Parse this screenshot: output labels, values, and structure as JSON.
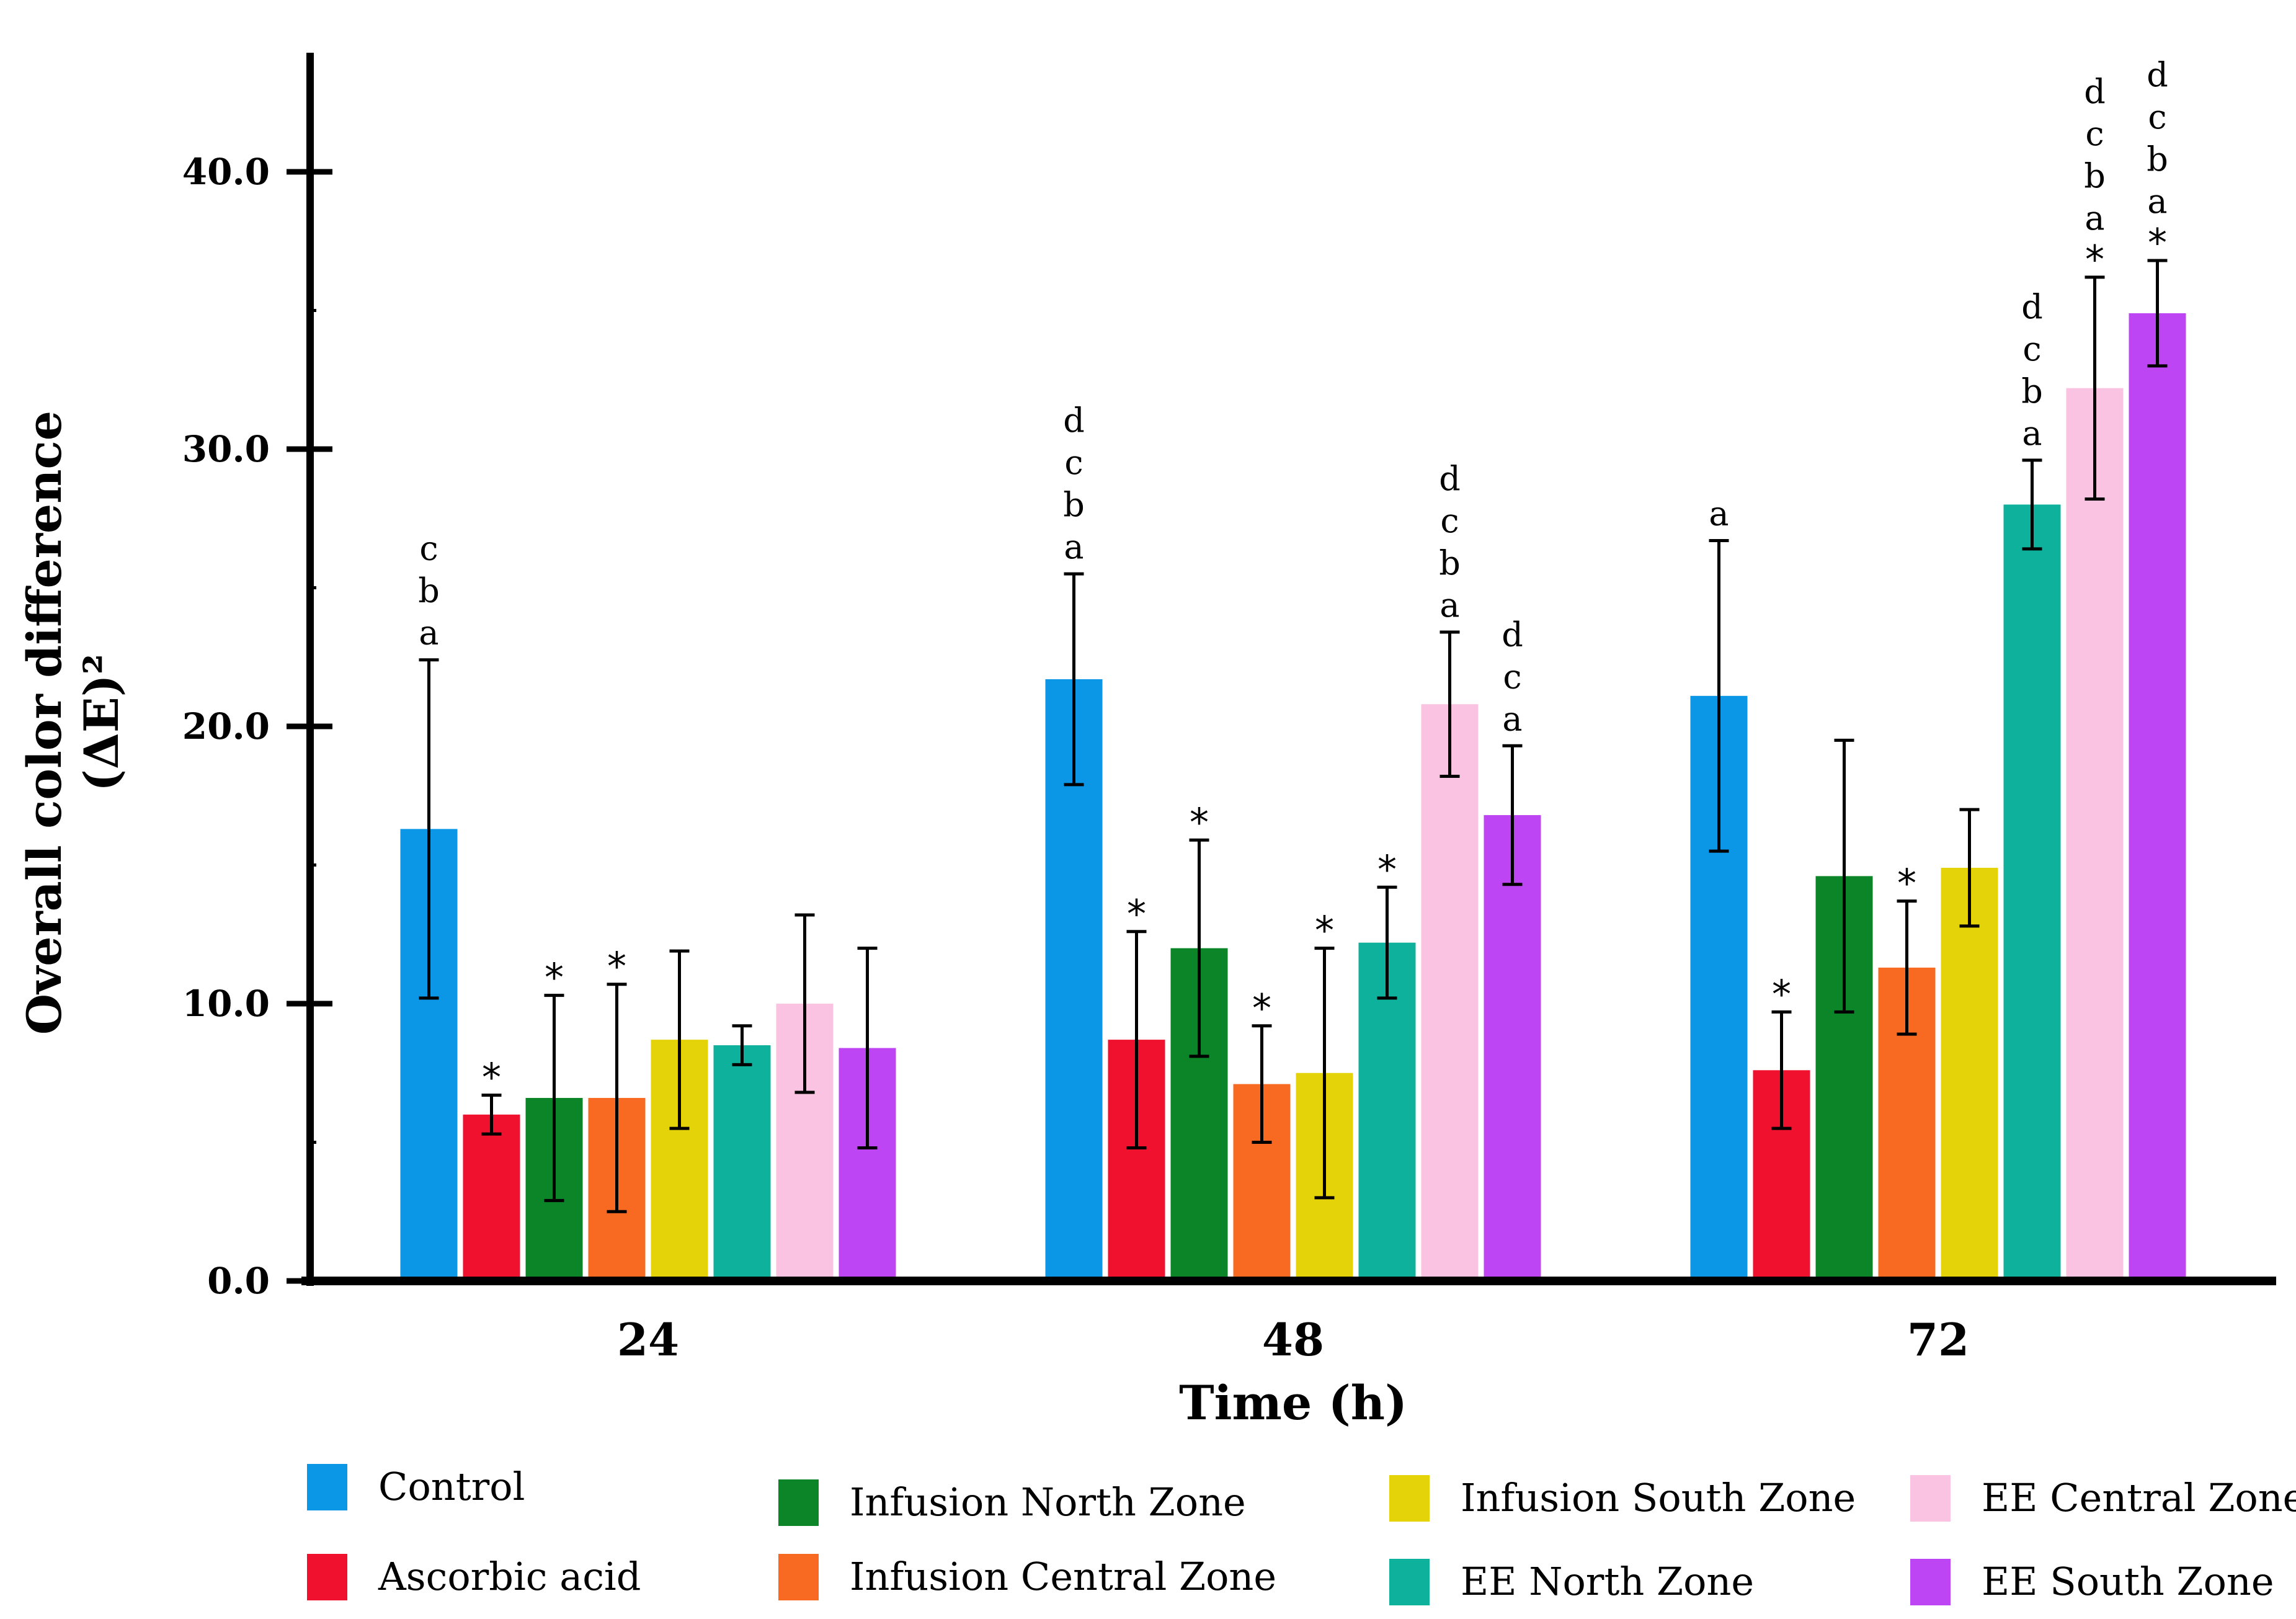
{
  "chart_data": {
    "type": "bar",
    "title": "",
    "xlabel": "Time (h)",
    "ylabel_line1": "Overall color difference",
    "ylabel_line2": "(ΔE)²",
    "ylim": [
      0,
      44
    ],
    "yticks": [
      0,
      10,
      20,
      30,
      40
    ],
    "ytick_labels": [
      "0.0",
      "10.0",
      "20.0",
      "30.0",
      "40.0"
    ],
    "categories": [
      "24",
      "48",
      "72"
    ],
    "legend_position": "bottom",
    "series": [
      {
        "name": "Control",
        "color": "#0b96e6",
        "values": [
          16.3,
          21.7,
          21.1
        ],
        "errors": [
          6.1,
          3.8,
          5.6
        ],
        "sig_letters": [
          [
            "c",
            "b",
            "a"
          ],
          [
            "d",
            "c",
            "b",
            "a"
          ],
          [
            "a"
          ]
        ],
        "star": [
          false,
          false,
          false
        ]
      },
      {
        "name": "Ascorbic acid",
        "color": "#f0112f",
        "values": [
          6.0,
          8.7,
          7.6
        ],
        "errors": [
          0.7,
          3.9,
          2.1
        ],
        "sig_letters": [
          [],
          [],
          []
        ],
        "star": [
          true,
          true,
          true
        ]
      },
      {
        "name": "Infusion North Zone",
        "color": "#0b8527",
        "values": [
          6.6,
          12.0,
          14.6
        ],
        "errors": [
          3.7,
          3.9,
          4.9
        ],
        "sig_letters": [
          [],
          [],
          []
        ],
        "star": [
          true,
          true,
          false
        ]
      },
      {
        "name": "Infusion Central Zone",
        "color": "#f86a22",
        "values": [
          6.6,
          7.1,
          11.3
        ],
        "errors": [
          4.1,
          2.1,
          2.4
        ],
        "sig_letters": [
          [],
          [],
          []
        ],
        "star": [
          true,
          true,
          true
        ]
      },
      {
        "name": "Infusion South Zone",
        "color": "#e5d30a",
        "values": [
          8.7,
          7.5,
          14.9
        ],
        "errors": [
          3.2,
          4.5,
          2.1
        ],
        "sig_letters": [
          [],
          [],
          []
        ],
        "star": [
          false,
          true,
          false
        ]
      },
      {
        "name": "EE North Zone",
        "color": "#0eb19b",
        "values": [
          8.5,
          12.2,
          28.0
        ],
        "errors": [
          0.7,
          2.0,
          1.6
        ],
        "sig_letters": [
          [],
          [],
          [
            "d",
            "c",
            "b",
            "a"
          ]
        ],
        "star": [
          false,
          true,
          false
        ]
      },
      {
        "name": "EE Central Zone",
        "color": "#f9c3e1",
        "values": [
          10.0,
          20.8,
          32.2
        ],
        "errors": [
          3.2,
          2.6,
          4.0
        ],
        "sig_letters": [
          [],
          [
            "d",
            "c",
            "b",
            "a"
          ],
          [
            "d",
            "c",
            "b",
            "a"
          ]
        ],
        "star": [
          false,
          false,
          true
        ]
      },
      {
        "name": "EE South Zone",
        "color": "#bd45f3",
        "values": [
          8.4,
          16.8,
          34.9
        ],
        "errors": [
          3.6,
          2.5,
          1.9
        ],
        "sig_letters": [
          [],
          [
            "d",
            "c",
            "a"
          ],
          [
            "d",
            "c",
            "b",
            "a"
          ]
        ],
        "star": [
          false,
          false,
          true
        ]
      }
    ]
  }
}
